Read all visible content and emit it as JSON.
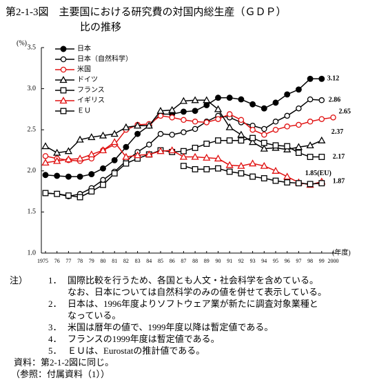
{
  "chart_data": {
    "type": "line",
    "title": "第2-1-3図　主要国における研究費の対国内総生産（ＧＤＰ）",
    "subtitle": "比の推移",
    "y_label": "(%)",
    "x_label": "(年度)",
    "categories": [
      "1975",
      "76",
      "77",
      "78",
      "79",
      "80",
      "81",
      "82",
      "83",
      "84",
      "85",
      "86",
      "87",
      "88",
      "89",
      "90",
      "91",
      "92",
      "93",
      "94",
      "95",
      "96",
      "97",
      "98",
      "99",
      "2000"
    ],
    "ylim": [
      1.0,
      3.5
    ],
    "yticks": [
      {
        "value": 1.0,
        "label": "1.0"
      },
      1.5,
      {
        "value": 2.0,
        "label": "2.0"
      },
      2.5,
      {
        "value": 3.0,
        "label": "3.0"
      },
      3.5
    ],
    "series": [
      {
        "name": "日本",
        "color": "#000000",
        "marker": "filled-circle",
        "values": [
          1.95,
          1.94,
          1.93,
          1.93,
          1.96,
          2.03,
          2.13,
          2.29,
          2.45,
          2.55,
          2.69,
          2.69,
          2.72,
          2.73,
          2.8,
          2.89,
          2.89,
          2.87,
          2.81,
          2.76,
          2.83,
          2.93,
          2.99,
          3.12,
          3.12,
          null
        ],
        "value_labels": [
          null,
          null,
          null,
          null,
          null,
          null,
          null,
          null,
          null,
          null,
          null,
          null,
          null,
          null,
          null,
          null,
          null,
          null,
          null,
          null,
          null,
          null,
          null,
          null,
          "3.12",
          null
        ]
      },
      {
        "name": "日本（自然科学）",
        "color": "#000000",
        "marker": "circle",
        "values": [
          1.73,
          1.72,
          1.69,
          1.72,
          1.79,
          1.89,
          1.99,
          2.12,
          2.23,
          2.32,
          2.45,
          2.44,
          2.47,
          2.51,
          2.6,
          2.67,
          2.65,
          2.59,
          2.55,
          2.51,
          2.6,
          2.67,
          2.76,
          2.87,
          2.86,
          null
        ],
        "value_labels": [
          null,
          null,
          null,
          null,
          null,
          null,
          null,
          null,
          null,
          null,
          null,
          null,
          null,
          null,
          null,
          null,
          null,
          null,
          null,
          null,
          null,
          null,
          null,
          null,
          "2.86",
          null
        ]
      },
      {
        "name": "米国",
        "color": "#e01010",
        "marker": "circle",
        "values": [
          2.18,
          2.15,
          2.13,
          2.12,
          2.15,
          2.25,
          2.32,
          2.5,
          2.56,
          2.57,
          2.67,
          2.65,
          2.62,
          2.6,
          2.59,
          2.63,
          2.69,
          2.62,
          2.5,
          2.44,
          2.5,
          2.54,
          2.56,
          2.6,
          2.63,
          2.65
        ],
        "value_labels": [
          null,
          null,
          null,
          null,
          null,
          null,
          null,
          null,
          null,
          null,
          null,
          null,
          null,
          null,
          null,
          null,
          null,
          null,
          null,
          null,
          null,
          null,
          null,
          null,
          null,
          "2.65"
        ]
      },
      {
        "name": "ドイツ",
        "color": "#000000",
        "marker": "triangle",
        "values": [
          2.3,
          2.22,
          2.24,
          2.38,
          2.41,
          2.43,
          2.45,
          2.53,
          2.55,
          2.55,
          2.73,
          2.74,
          2.85,
          2.86,
          2.86,
          2.75,
          2.53,
          2.44,
          2.35,
          2.27,
          2.28,
          2.26,
          2.29,
          2.31,
          2.37,
          null
        ],
        "value_labels": [
          null,
          null,
          null,
          null,
          null,
          null,
          null,
          null,
          null,
          null,
          null,
          null,
          null,
          null,
          null,
          null,
          null,
          null,
          null,
          null,
          null,
          null,
          null,
          null,
          "2.37",
          null
        ]
      },
      {
        "name": "フランス",
        "color": "#000000",
        "marker": "square",
        "values": [
          1.73,
          1.72,
          1.7,
          1.68,
          1.75,
          1.83,
          1.97,
          2.09,
          2.15,
          2.2,
          2.25,
          2.23,
          2.24,
          2.28,
          2.33,
          2.37,
          2.37,
          2.37,
          2.4,
          2.34,
          2.31,
          2.3,
          2.22,
          2.17,
          2.17,
          null
        ],
        "value_labels": [
          null,
          null,
          null,
          null,
          null,
          null,
          null,
          null,
          null,
          null,
          null,
          null,
          null,
          null,
          null,
          null,
          null,
          null,
          null,
          null,
          null,
          null,
          null,
          null,
          "2.17",
          null
        ]
      },
      {
        "name": "イギリス",
        "color": "#e01010",
        "marker": "triangle",
        "values": [
          2.1,
          2.12,
          2.14,
          2.15,
          2.2,
          2.25,
          2.35,
          2.17,
          2.19,
          2.2,
          2.24,
          2.25,
          2.17,
          2.17,
          2.16,
          2.15,
          2.07,
          2.06,
          2.09,
          2.06,
          2.0,
          1.93,
          1.86,
          1.83,
          1.87,
          null
        ],
        "value_labels": [
          null,
          null,
          null,
          null,
          null,
          null,
          null,
          null,
          null,
          null,
          null,
          null,
          null,
          null,
          null,
          null,
          null,
          null,
          null,
          null,
          null,
          null,
          null,
          null,
          "1.87",
          null
        ]
      },
      {
        "name": "ＥＵ",
        "color": "#000000",
        "marker": "square",
        "values": [
          null,
          null,
          null,
          null,
          null,
          null,
          null,
          null,
          null,
          null,
          null,
          null,
          2.06,
          2.02,
          2.02,
          2.03,
          1.99,
          1.97,
          1.93,
          1.91,
          1.88,
          1.86,
          1.85,
          1.84,
          1.85,
          null
        ],
        "value_labels": [
          null,
          null,
          null,
          null,
          null,
          null,
          null,
          null,
          null,
          null,
          null,
          null,
          null,
          null,
          null,
          null,
          null,
          null,
          null,
          null,
          null,
          null,
          null,
          null,
          "1.85(EU)",
          null
        ]
      }
    ]
  },
  "notes": {
    "head": "注）",
    "items": [
      {
        "num": "1．",
        "lines": [
          "国際比較を行うため、各国とも人文・社会科学を含めている。",
          "なお、日本については自然科学のみの値を併せて表示している。"
        ]
      },
      {
        "num": "2．",
        "lines": [
          "日本は、1996年度よりソフトウェア業が新たに調査対象業種と",
          "なっている。"
        ]
      },
      {
        "num": "3．",
        "lines": [
          "米国は暦年の値で、1999年度以降は暫定値である。"
        ]
      },
      {
        "num": "4．",
        "lines": [
          "フランスの1999年度は暫定値である。"
        ]
      },
      {
        "num": "5．",
        "lines": [
          "ＥＵは、Eurostatの推計値である。"
        ]
      }
    ],
    "source": "資料：第2-1-2図に同じ。",
    "reference": "（参照：付属資料（1））"
  }
}
